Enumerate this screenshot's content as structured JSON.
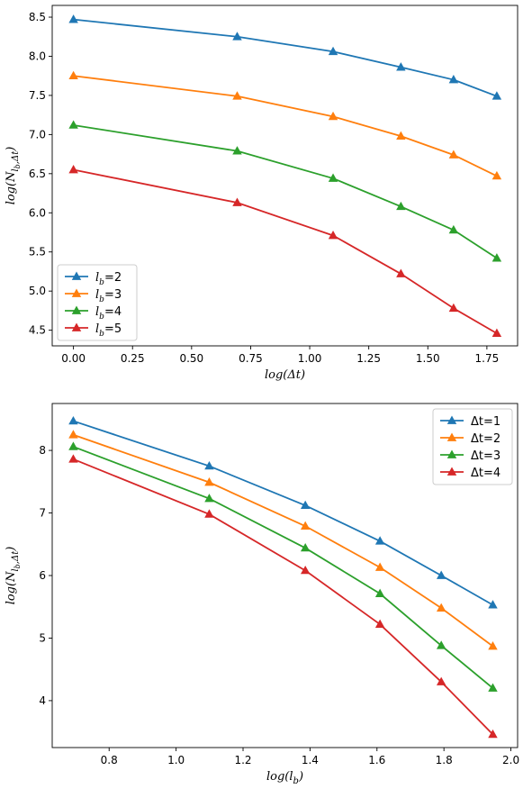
{
  "figure": {
    "background": "#ffffff"
  },
  "chart_data": [
    {
      "type": "line",
      "xlabel": "log(Δt)",
      "ylabel": "log(N_{l_b,Δt})",
      "ylabel_parts": {
        "base": "log(N",
        "sub": "l",
        "subsub": "b",
        "sub2": ",Δt",
        "end": ")"
      },
      "xlabel_parts": {
        "base": "log(Δt)"
      },
      "xlim": [
        -0.09,
        1.88
      ],
      "ylim": [
        4.3,
        8.65
      ],
      "xticks": [
        0.0,
        0.25,
        0.5,
        0.75,
        1.0,
        1.25,
        1.5,
        1.75
      ],
      "xtick_labels": [
        "0.00",
        "0.25",
        "0.50",
        "0.75",
        "1.00",
        "1.25",
        "1.50",
        "1.75"
      ],
      "yticks": [
        4.5,
        5.0,
        5.5,
        6.0,
        6.5,
        7.0,
        7.5,
        8.0,
        8.5
      ],
      "ytick_labels": [
        "4.5",
        "5.0",
        "5.5",
        "6.0",
        "6.5",
        "7.0",
        "7.5",
        "8.0",
        "8.5"
      ],
      "grid": false,
      "legend_position": "lower-left",
      "x": [
        0.0,
        0.693,
        1.099,
        1.386,
        1.609,
        1.792
      ],
      "series": [
        {
          "name_parts": [
            "l",
            "b",
            "=2"
          ],
          "color": "#1f77b4",
          "values": [
            8.47,
            8.25,
            8.06,
            7.86,
            7.7,
            7.49
          ]
        },
        {
          "name_parts": [
            "l",
            "b",
            "=3"
          ],
          "color": "#ff7f0e",
          "values": [
            7.75,
            7.49,
            7.23,
            6.98,
            6.74,
            6.47
          ]
        },
        {
          "name_parts": [
            "l",
            "b",
            "=4"
          ],
          "color": "#2ca02c",
          "values": [
            7.12,
            6.79,
            6.44,
            6.08,
            5.78,
            5.42
          ]
        },
        {
          "name_parts": [
            "l",
            "b",
            "=5"
          ],
          "color": "#d62728",
          "values": [
            6.55,
            6.13,
            5.71,
            5.22,
            4.78,
            4.46
          ]
        }
      ]
    },
    {
      "type": "line",
      "xlabel": "log(l_b)",
      "ylabel": "log(N_{l_b,Δt})",
      "ylabel_parts": {
        "base": "log(N",
        "sub": "l",
        "subsub": "b",
        "sub2": ",Δt",
        "end": ")"
      },
      "xlabel_parts": {
        "base": "log(l",
        "sub": "b",
        "end": ")"
      },
      "xlim": [
        0.63,
        2.02
      ],
      "ylim": [
        3.25,
        8.75
      ],
      "xticks": [
        0.8,
        1.0,
        1.2,
        1.4,
        1.6,
        1.8,
        2.0
      ],
      "xtick_labels": [
        "0.8",
        "1.0",
        "1.2",
        "1.4",
        "1.6",
        "1.8",
        "2.0"
      ],
      "yticks": [
        4,
        5,
        6,
        7,
        8
      ],
      "ytick_labels": [
        "4",
        "5",
        "6",
        "7",
        "8"
      ],
      "grid": false,
      "legend_position": "upper-right",
      "x": [
        0.693,
        1.099,
        1.386,
        1.609,
        1.792,
        1.946
      ],
      "series": [
        {
          "name_parts": [
            "Δt=1"
          ],
          "color": "#1f77b4",
          "values": [
            8.47,
            7.75,
            7.12,
            6.55,
            6.0,
            5.53
          ]
        },
        {
          "name_parts": [
            "Δt=2"
          ],
          "color": "#ff7f0e",
          "values": [
            8.25,
            7.49,
            6.79,
            6.13,
            5.48,
            4.87
          ]
        },
        {
          "name_parts": [
            "Δt=3"
          ],
          "color": "#2ca02c",
          "values": [
            8.06,
            7.23,
            6.44,
            5.71,
            4.88,
            4.2
          ]
        },
        {
          "name_parts": [
            "Δt=4"
          ],
          "color": "#d62728",
          "values": [
            7.86,
            6.98,
            6.08,
            5.22,
            4.3,
            3.46
          ]
        }
      ]
    }
  ]
}
